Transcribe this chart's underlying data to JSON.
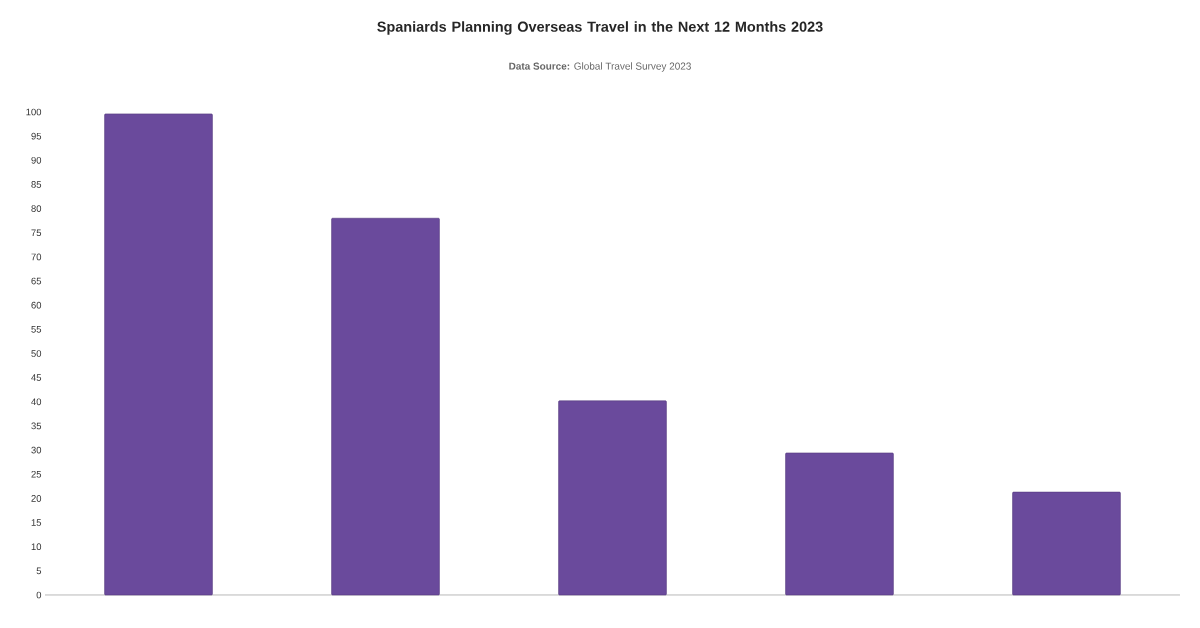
{
  "chart_data": {
    "type": "bar",
    "title": "Spaniards Planning Overseas Travel in the Next 12 Months 2023",
    "annotations": [
      "**Data Source:** Global Travel Survey 2023"
    ],
    "categories": [
      null,
      null,
      null,
      null,
      null
    ],
    "values": [
      99.6,
      78.0,
      40.2,
      29.4,
      21.3
    ],
    "color": "#6a4a9c",
    "ylim": [
      0,
      100
    ],
    "yticks": [
      0,
      5,
      10,
      15,
      20,
      25,
      30,
      35,
      40,
      45,
      50,
      55,
      60,
      65,
      70,
      75,
      80,
      85,
      90,
      95,
      100
    ],
    "tick_labels": "y"
  }
}
